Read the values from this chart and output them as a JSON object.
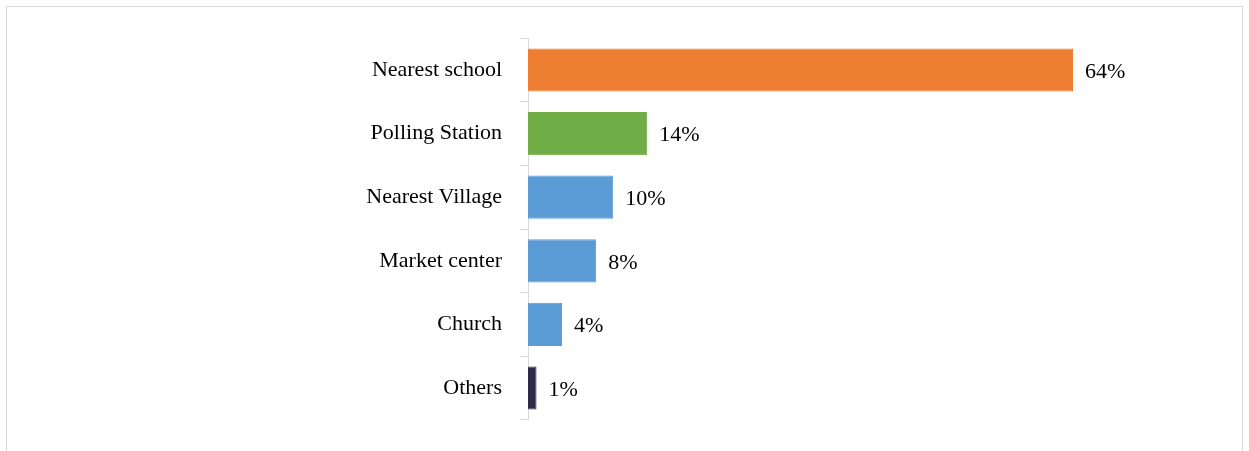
{
  "chart_data": {
    "type": "bar",
    "orientation": "horizontal",
    "categories": [
      "Nearest school",
      "Polling Station",
      "Nearest Village",
      "Market center",
      "Church",
      "Others"
    ],
    "values": [
      64,
      14,
      10,
      8,
      4,
      1
    ],
    "colors": [
      "#ed7d31",
      "#70ad47",
      "#5b9bd5",
      "#5b9bd5",
      "#5b9bd5",
      "#2e2a4a"
    ],
    "value_labels": [
      "64%",
      "14%",
      "10%",
      "8%",
      "4%",
      "1%"
    ],
    "legend": false
  }
}
